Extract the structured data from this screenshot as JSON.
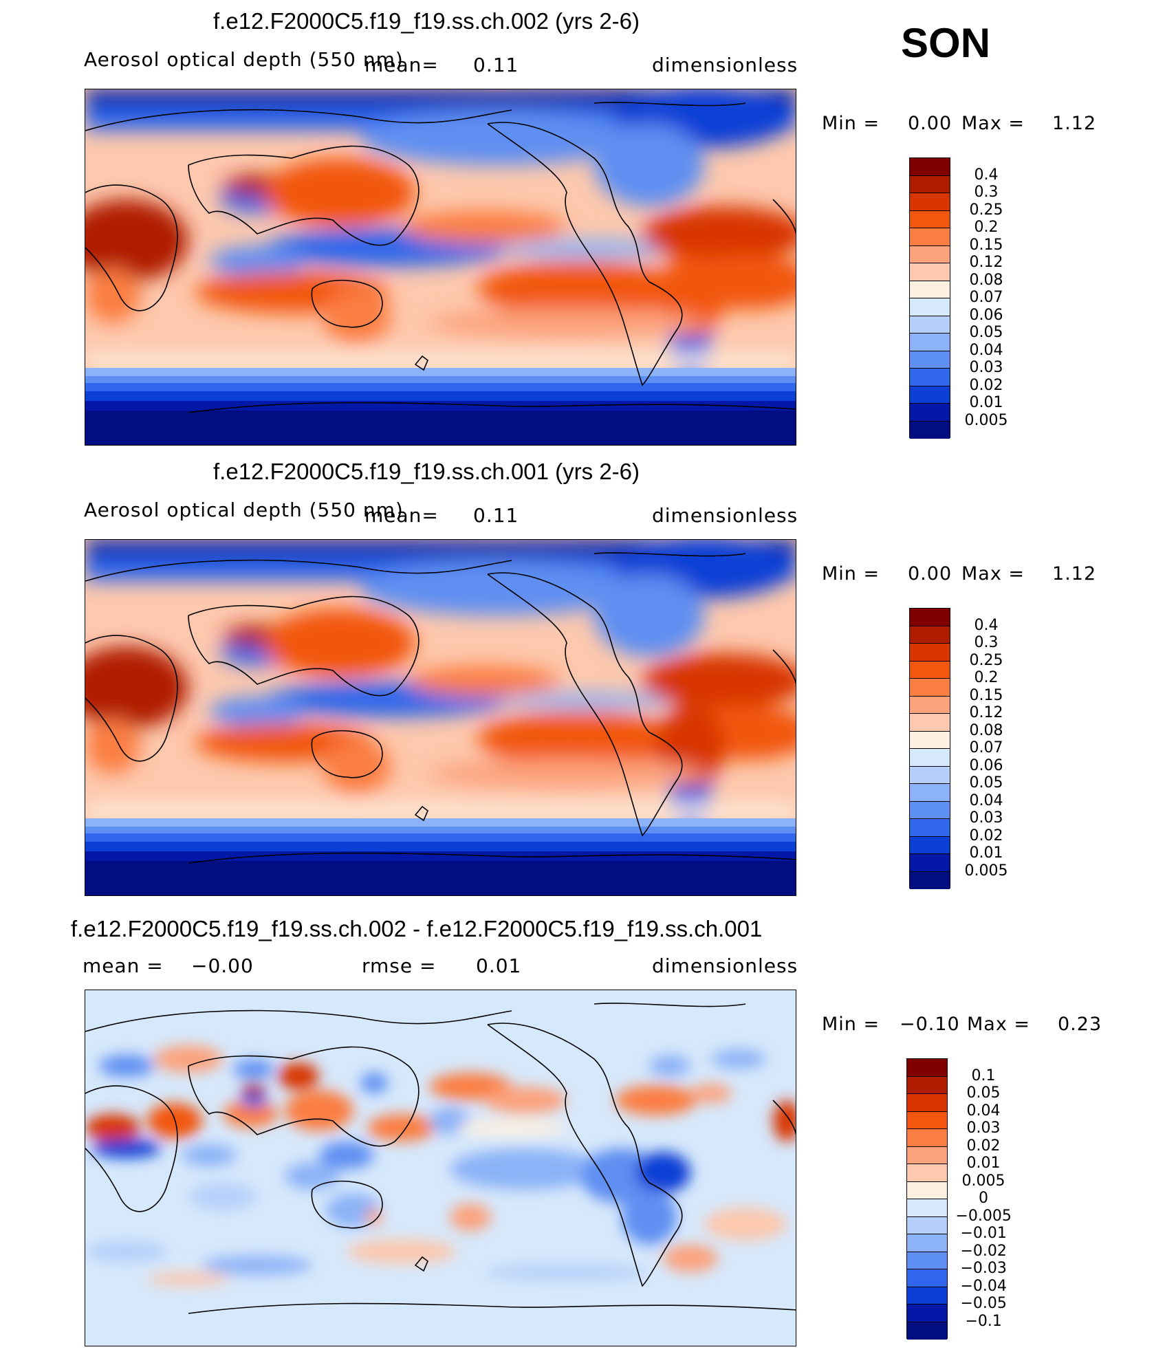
{
  "season": "SON",
  "panels": [
    {
      "title": "f.e12.F2000C5.f19_f19.ss.ch.002 (yrs 2-6)",
      "left_label": "Aerosol optical depth (550 nm)",
      "mid_label": "mean=",
      "mid_value": "0.11",
      "units": "dimensionless",
      "min_label": "Min =",
      "min_value": "0.00",
      "max_label": "Max =",
      "max_value": "1.12"
    },
    {
      "title": "f.e12.F2000C5.f19_f19.ss.ch.001 (yrs 2-6)",
      "left_label": "Aerosol optical depth (550 nm)",
      "mid_label": "mean=",
      "mid_value": "0.11",
      "units": "dimensionless",
      "min_label": "Min =",
      "min_value": "0.00",
      "max_label": "Max =",
      "max_value": "1.12"
    },
    {
      "title": "f.e12.F2000C5.f19_f19.ss.ch.002 - f.e12.F2000C5.f19_f19.ss.ch.001",
      "left_label": "mean =",
      "left_value": "−0.00",
      "mid_label": "rmse =",
      "mid_value": "0.01",
      "units": "dimensionless",
      "min_label": "Min =",
      "min_value": "−0.10",
      "max_label": "Max =",
      "max_value": "0.23"
    }
  ],
  "chart_data": [
    {
      "type": "heatmap",
      "title": "f.e12.F2000C5.f19_f19.ss.ch.002 (yrs 2-6)",
      "variable": "Aerosol optical depth (550 nm)",
      "units": "dimensionless",
      "mean": 0.11,
      "min": 0.0,
      "max": 1.12,
      "colorbar_levels": [
        "0.4",
        "0.3",
        "0.25",
        "0.2",
        "0.15",
        "0.12",
        "0.08",
        "0.07",
        "0.06",
        "0.05",
        "0.04",
        "0.03",
        "0.02",
        "0.01",
        "0.005"
      ],
      "colorbar_colors": [
        "#800000",
        "#b01c00",
        "#d83500",
        "#f2560f",
        "#fb7e42",
        "#fca27c",
        "#fdc8ad",
        "#fef0e0",
        "#d6e8fb",
        "#b5d0fa",
        "#8cb2f7",
        "#5e8ff2",
        "#2f66eb",
        "#0b3fd6",
        "#0418a8",
        "#010d80"
      ]
    },
    {
      "type": "heatmap",
      "title": "f.e12.F2000C5.f19_f19.ss.ch.001 (yrs 2-6)",
      "variable": "Aerosol optical depth (550 nm)",
      "units": "dimensionless",
      "mean": 0.11,
      "min": 0.0,
      "max": 1.12,
      "colorbar_levels": [
        "0.4",
        "0.3",
        "0.25",
        "0.2",
        "0.15",
        "0.12",
        "0.08",
        "0.07",
        "0.06",
        "0.05",
        "0.04",
        "0.03",
        "0.02",
        "0.01",
        "0.005"
      ],
      "colorbar_colors": [
        "#800000",
        "#b01c00",
        "#d83500",
        "#f2560f",
        "#fb7e42",
        "#fca27c",
        "#fdc8ad",
        "#fef0e0",
        "#d6e8fb",
        "#b5d0fa",
        "#8cb2f7",
        "#5e8ff2",
        "#2f66eb",
        "#0b3fd6",
        "#0418a8",
        "#010d80"
      ]
    },
    {
      "type": "heatmap",
      "title": "f.e12.F2000C5.f19_f19.ss.ch.002 - f.e12.F2000C5.f19_f19.ss.ch.001",
      "units": "dimensionless",
      "mean": -0.0,
      "rmse": 0.01,
      "min": -0.1,
      "max": 0.23,
      "colorbar_levels": [
        "0.1",
        "0.05",
        "0.04",
        "0.03",
        "0.02",
        "0.01",
        "0.005",
        "0",
        "−0.005",
        "−0.01",
        "−0.02",
        "−0.03",
        "−0.04",
        "−0.05",
        "−0.1"
      ],
      "colorbar_colors": [
        "#800000",
        "#b01c00",
        "#d83500",
        "#f2560f",
        "#fb7e42",
        "#fca27c",
        "#fdc8ad",
        "#fef0e0",
        "#d6e8fb",
        "#b5d0fa",
        "#8cb2f7",
        "#5e8ff2",
        "#2f66eb",
        "#0b3fd6",
        "#0418a8",
        "#010d80"
      ]
    }
  ]
}
